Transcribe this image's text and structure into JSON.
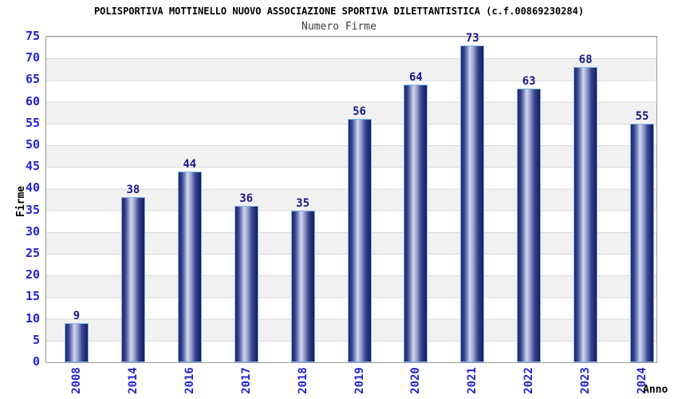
{
  "chart_data": {
    "type": "bar",
    "title": "POLISPORTIVA MOTTINELLO NUOVO ASSOCIAZIONE SPORTIVA DILETTANTISTICA (c.f.00869230284)",
    "subtitle": "Numero Firme",
    "xlabel": "Anno",
    "ylabel": "Firme",
    "categories": [
      "2008",
      "2014",
      "2016",
      "2017",
      "2018",
      "2019",
      "2020",
      "2021",
      "2022",
      "2023",
      "2024"
    ],
    "values": [
      9,
      38,
      44,
      36,
      35,
      56,
      64,
      73,
      63,
      68,
      55
    ],
    "ylim": [
      0,
      75
    ],
    "ytick_step": 5,
    "yticks": [
      0,
      5,
      10,
      15,
      20,
      25,
      30,
      35,
      40,
      45,
      50,
      55,
      60,
      65,
      70,
      75
    ],
    "grid": "horizontal",
    "banded_background": true,
    "legend_position": "none",
    "value_labels_shown": true,
    "colors": {
      "bar_dark": "#1c2470",
      "bar_highlight": "#d2d7ee",
      "bar_border": "#7db6ea",
      "axis_tick_label": "#2323d0",
      "value_label": "#1a1a8b",
      "band_gray": "#f1f1f1",
      "gridline": "#d9d9d9",
      "plot_border": "#999999",
      "title": "#000000",
      "subtitle": "#3d3d3d"
    }
  }
}
